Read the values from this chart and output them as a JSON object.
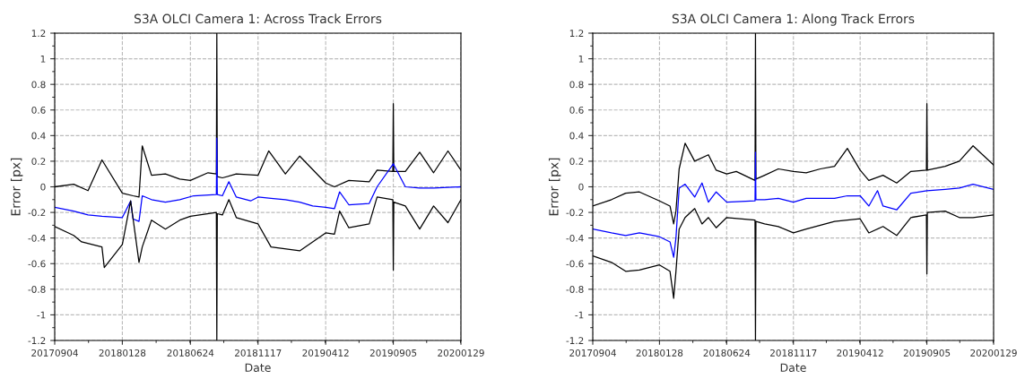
{
  "chart_data": [
    {
      "type": "line",
      "title": "S3A OLCI Camera 1: Across Track Errors",
      "xlabel": "Date",
      "ylabel": "Error [px]",
      "grid": true,
      "line_style": "solid",
      "marker": "none",
      "xlim": [
        "2017-09-04",
        "2020-01-29"
      ],
      "ylim": [
        -1.2,
        1.2
      ],
      "xticks": [
        {
          "value": "2017-09-04",
          "label": "20170904"
        },
        {
          "value": "2018-01-28",
          "label": "20180128"
        },
        {
          "value": "2018-06-24",
          "label": "20180624"
        },
        {
          "value": "2018-11-17",
          "label": "20181117"
        },
        {
          "value": "2019-04-12",
          "label": "20190412"
        },
        {
          "value": "2019-09-05",
          "label": "20190905"
        },
        {
          "value": "2020-01-29",
          "label": "20200129"
        }
      ],
      "yticks": [
        -1.2,
        -1,
        -0.8,
        -0.6,
        -0.4,
        -0.2,
        0,
        0.2,
        0.4,
        0.6,
        0.8,
        1,
        1.2
      ],
      "series": [
        {
          "color": "#000000",
          "x": [
            "2017-09-04",
            "2017-10-15",
            "2017-11-15",
            "2017-12-15",
            "2018-01-28",
            "2018-02-20",
            "2018-03-05",
            "2018-03-12",
            "2018-04-01",
            "2018-05-01",
            "2018-06-01",
            "2018-06-24",
            "2018-08-01",
            "2018-08-19",
            "2018-08-20",
            "2018-08-21",
            "2018-09-01",
            "2018-10-01",
            "2018-11-17",
            "2018-12-10",
            "2019-01-15",
            "2019-02-15",
            "2019-04-12",
            "2019-05-01",
            "2019-06-01",
            "2019-07-15",
            "2019-08-01",
            "2019-09-04",
            "2019-09-05",
            "2019-09-06",
            "2019-10-01",
            "2019-11-01",
            "2019-12-01",
            "2020-01-01",
            "2020-01-29"
          ],
          "values": [
            0.0,
            0.02,
            -0.03,
            0.21,
            -0.05,
            -0.07,
            -0.08,
            0.32,
            0.09,
            0.1,
            0.06,
            0.05,
            0.11,
            0.1,
            1.2,
            0.08,
            0.07,
            0.1,
            0.09,
            0.28,
            0.1,
            0.24,
            0.03,
            0.0,
            0.05,
            0.04,
            0.13,
            0.12,
            0.65,
            0.12,
            0.12,
            0.27,
            0.11,
            0.28,
            0.13
          ]
        },
        {
          "color": "#0000ff",
          "x": [
            "2017-09-04",
            "2017-10-15",
            "2017-11-15",
            "2017-12-15",
            "2018-01-28",
            "2018-02-15",
            "2018-02-20",
            "2018-03-05",
            "2018-03-12",
            "2018-04-01",
            "2018-05-01",
            "2018-06-01",
            "2018-07-01",
            "2018-08-19",
            "2018-08-20",
            "2018-08-21",
            "2018-09-01",
            "2018-09-15",
            "2018-10-01",
            "2018-11-01",
            "2018-11-17",
            "2018-12-15",
            "2019-01-15",
            "2019-02-15",
            "2019-03-15",
            "2019-04-12",
            "2019-05-01",
            "2019-05-12",
            "2019-06-01",
            "2019-07-15",
            "2019-08-01",
            "2019-09-05",
            "2019-10-01",
            "2019-11-01",
            "2019-12-01",
            "2020-01-29"
          ],
          "values": [
            -0.16,
            -0.19,
            -0.22,
            -0.23,
            -0.24,
            -0.11,
            -0.25,
            -0.27,
            -0.07,
            -0.1,
            -0.12,
            -0.1,
            -0.07,
            -0.06,
            0.38,
            -0.06,
            -0.07,
            0.04,
            -0.08,
            -0.11,
            -0.08,
            -0.09,
            -0.1,
            -0.12,
            -0.15,
            -0.16,
            -0.17,
            -0.04,
            -0.14,
            -0.13,
            0.0,
            0.18,
            0.0,
            -0.01,
            -0.01,
            0.0
          ]
        },
        {
          "color": "#000000",
          "x": [
            "2017-09-04",
            "2017-10-15",
            "2017-11-01",
            "2017-12-15",
            "2017-12-20",
            "2018-01-28",
            "2018-02-15",
            "2018-03-05",
            "2018-03-12",
            "2018-04-01",
            "2018-05-01",
            "2018-06-01",
            "2018-06-24",
            "2018-08-19",
            "2018-08-20",
            "2018-08-21",
            "2018-09-01",
            "2018-09-15",
            "2018-10-01",
            "2018-11-17",
            "2018-12-15",
            "2019-02-15",
            "2019-04-12",
            "2019-05-01",
            "2019-05-12",
            "2019-06-01",
            "2019-07-15",
            "2019-08-01",
            "2019-09-04",
            "2019-09-05",
            "2019-09-06",
            "2019-10-01",
            "2019-11-01",
            "2019-12-01",
            "2020-01-01",
            "2020-01-29"
          ],
          "values": [
            -0.31,
            -0.38,
            -0.43,
            -0.47,
            -0.63,
            -0.45,
            -0.11,
            -0.59,
            -0.47,
            -0.26,
            -0.33,
            -0.26,
            -0.23,
            -0.2,
            -1.2,
            -0.21,
            -0.22,
            -0.1,
            -0.24,
            -0.29,
            -0.47,
            -0.5,
            -0.36,
            -0.37,
            -0.19,
            -0.32,
            -0.29,
            -0.08,
            -0.1,
            -0.65,
            -0.12,
            -0.15,
            -0.33,
            -0.15,
            -0.28,
            -0.1
          ]
        }
      ]
    },
    {
      "type": "line",
      "title": "S3A OLCI Camera 1: Along Track Errors",
      "xlabel": "Date",
      "ylabel": "Error [px]",
      "grid": true,
      "line_style": "solid",
      "marker": "none",
      "xlim": [
        "2017-09-04",
        "2020-01-29"
      ],
      "ylim": [
        -1.2,
        1.2
      ],
      "xticks": [
        {
          "value": "2017-09-04",
          "label": "20170904"
        },
        {
          "value": "2018-01-28",
          "label": "20180128"
        },
        {
          "value": "2018-06-24",
          "label": "20180624"
        },
        {
          "value": "2018-11-17",
          "label": "20181117"
        },
        {
          "value": "2019-04-12",
          "label": "20190412"
        },
        {
          "value": "2019-09-05",
          "label": "20190905"
        },
        {
          "value": "2020-01-29",
          "label": "20200129"
        }
      ],
      "yticks": [
        -1.2,
        -1,
        -0.8,
        -0.6,
        -0.4,
        -0.2,
        0,
        0.2,
        0.4,
        0.6,
        0.8,
        1,
        1.2
      ],
      "series": [
        {
          "color": "#000000",
          "x": [
            "2017-09-04",
            "2017-10-15",
            "2017-11-15",
            "2017-12-15",
            "2018-01-28",
            "2018-02-20",
            "2018-02-28",
            "2018-03-05",
            "2018-03-12",
            "2018-03-25",
            "2018-04-15",
            "2018-05-15",
            "2018-06-01",
            "2018-06-24",
            "2018-07-15",
            "2018-08-25",
            "2018-08-26",
            "2018-08-27",
            "2018-09-15",
            "2018-10-15",
            "2018-11-17",
            "2018-12-15",
            "2019-01-15",
            "2019-02-15",
            "2019-03-15",
            "2019-04-12",
            "2019-05-01",
            "2019-06-01",
            "2019-07-01",
            "2019-08-01",
            "2019-09-04",
            "2019-09-05",
            "2019-09-06",
            "2019-10-15",
            "2019-11-15",
            "2019-12-15",
            "2020-01-29"
          ],
          "values": [
            -0.15,
            -0.1,
            -0.05,
            -0.04,
            -0.11,
            -0.15,
            -0.29,
            -0.19,
            0.14,
            0.34,
            0.2,
            0.25,
            0.13,
            0.1,
            0.12,
            0.05,
            1.2,
            0.06,
            0.09,
            0.14,
            0.12,
            0.11,
            0.14,
            0.16,
            0.3,
            0.13,
            0.05,
            0.09,
            0.03,
            0.12,
            0.13,
            0.65,
            0.13,
            0.16,
            0.2,
            0.32,
            0.17
          ]
        },
        {
          "color": "#0000ff",
          "x": [
            "2017-09-04",
            "2017-10-15",
            "2017-11-15",
            "2017-12-15",
            "2018-01-28",
            "2018-02-20",
            "2018-02-28",
            "2018-03-05",
            "2018-03-12",
            "2018-03-25",
            "2018-04-15",
            "2018-05-01",
            "2018-05-15",
            "2018-06-01",
            "2018-06-24",
            "2018-08-25",
            "2018-08-26",
            "2018-08-27",
            "2018-09-15",
            "2018-10-15",
            "2018-11-17",
            "2018-12-15",
            "2019-02-15",
            "2019-03-15",
            "2019-04-12",
            "2019-05-01",
            "2019-05-20",
            "2019-06-01",
            "2019-07-01",
            "2019-08-01",
            "2019-09-05",
            "2019-10-15",
            "2019-11-15",
            "2019-12-15",
            "2020-01-29"
          ],
          "values": [
            -0.33,
            -0.36,
            -0.38,
            -0.36,
            -0.39,
            -0.43,
            -0.55,
            -0.4,
            -0.01,
            0.02,
            -0.08,
            0.03,
            -0.12,
            -0.04,
            -0.12,
            -0.11,
            0.27,
            -0.1,
            -0.1,
            -0.09,
            -0.12,
            -0.09,
            -0.09,
            -0.07,
            -0.07,
            -0.15,
            -0.03,
            -0.15,
            -0.18,
            -0.05,
            -0.03,
            -0.02,
            -0.01,
            0.02,
            -0.02
          ]
        },
        {
          "color": "#000000",
          "x": [
            "2017-09-04",
            "2017-10-15",
            "2017-11-15",
            "2017-12-15",
            "2018-01-28",
            "2018-02-20",
            "2018-02-28",
            "2018-03-05",
            "2018-03-12",
            "2018-03-25",
            "2018-04-15",
            "2018-05-01",
            "2018-05-15",
            "2018-06-01",
            "2018-06-24",
            "2018-08-25",
            "2018-08-26",
            "2018-08-27",
            "2018-09-15",
            "2018-10-15",
            "2018-11-17",
            "2018-12-15",
            "2019-02-15",
            "2019-03-15",
            "2019-04-12",
            "2019-05-01",
            "2019-06-01",
            "2019-07-01",
            "2019-08-01",
            "2019-09-04",
            "2019-09-05",
            "2019-09-06",
            "2019-10-15",
            "2019-11-15",
            "2019-12-15",
            "2020-01-29"
          ],
          "values": [
            -0.54,
            -0.59,
            -0.66,
            -0.65,
            -0.61,
            -0.66,
            -0.87,
            -0.66,
            -0.33,
            -0.24,
            -0.17,
            -0.29,
            -0.24,
            -0.32,
            -0.24,
            -0.26,
            -1.2,
            -0.27,
            -0.29,
            -0.31,
            -0.36,
            -0.33,
            -0.27,
            -0.26,
            -0.25,
            -0.36,
            -0.31,
            -0.38,
            -0.24,
            -0.22,
            -0.68,
            -0.2,
            -0.19,
            -0.24,
            -0.24,
            -0.22
          ]
        }
      ]
    }
  ]
}
